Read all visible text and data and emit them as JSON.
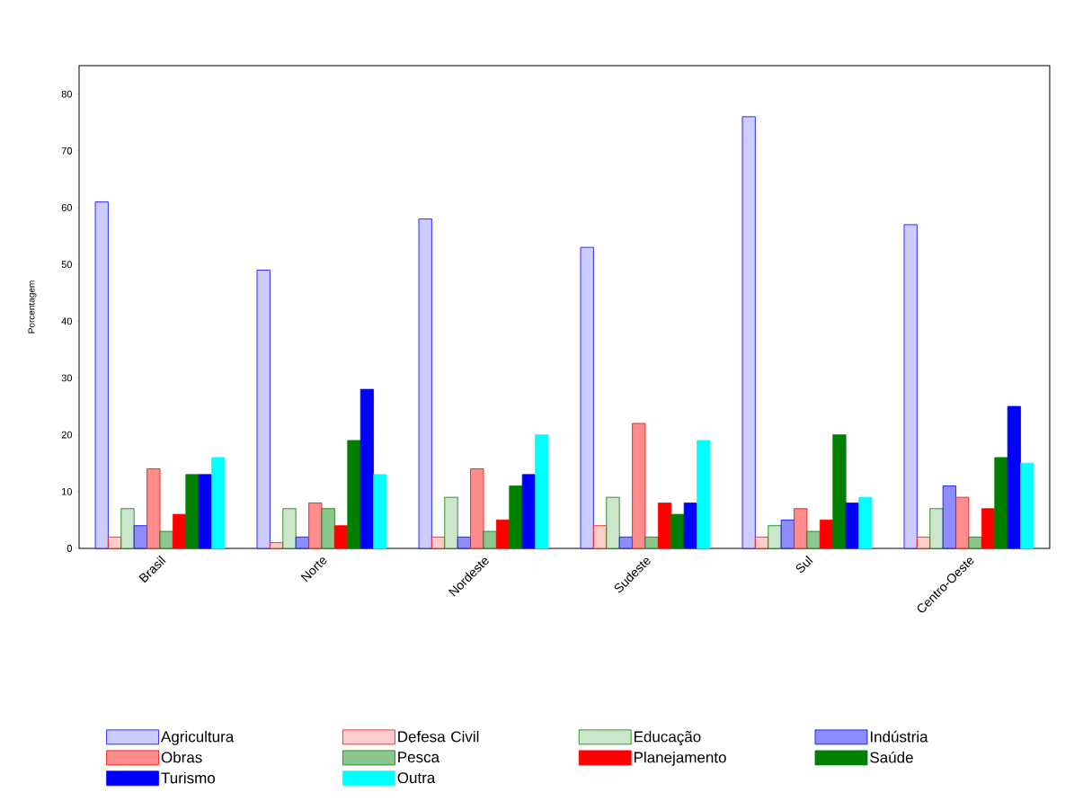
{
  "chart_data": {
    "type": "bar",
    "ylabel": "Porcentagem",
    "categories": [
      "Brasil",
      "Norte",
      "Nordeste",
      "Sudeste",
      "Sul",
      "Centro-Oeste"
    ],
    "series": [
      {
        "name": "Agricultura",
        "color": "#0000ff",
        "values": [
          61,
          49,
          58,
          53,
          76,
          57
        ]
      },
      {
        "name": "Defesa Civil",
        "color": "#ff0000",
        "values": [
          2,
          1,
          2,
          4,
          2,
          2
        ]
      },
      {
        "name": "Educação",
        "color": "#008000",
        "values": [
          7,
          7,
          9,
          9,
          4,
          7
        ]
      },
      {
        "name": "Indústria",
        "color": "#0000ff",
        "values": [
          4,
          2,
          2,
          2,
          5,
          11
        ]
      },
      {
        "name": "Obras",
        "color": "#ff0000",
        "values": [
          14,
          8,
          14,
          22,
          7,
          9
        ]
      },
      {
        "name": "Pesca",
        "color": "#008000",
        "values": [
          3,
          7,
          3,
          2,
          3,
          2
        ]
      },
      {
        "name": "Planejamento",
        "color": "#ff0000",
        "values": [
          6,
          4,
          5,
          8,
          5,
          7
        ]
      },
      {
        "name": "Saúde",
        "color": "#008000",
        "values": [
          13,
          19,
          11,
          6,
          20,
          16
        ]
      },
      {
        "name": "Turismo",
        "color": "#0000ff",
        "values": [
          13,
          28,
          13,
          8,
          8,
          25
        ]
      },
      {
        "name": "Outra",
        "color": "#00ffff",
        "values": [
          16,
          13,
          20,
          19,
          9,
          15
        ]
      }
    ],
    "ylim": [
      0,
      85
    ],
    "yticks": [
      0,
      10,
      20,
      30,
      40,
      50,
      60,
      70,
      80
    ],
    "legend": "bottom"
  }
}
